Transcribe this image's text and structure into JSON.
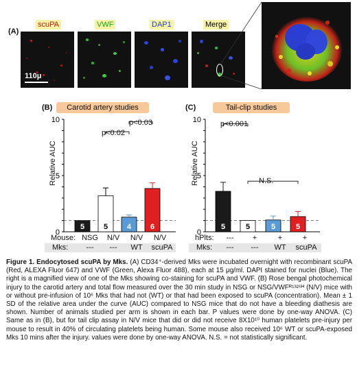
{
  "panel_a": {
    "letter": "(A)",
    "channels": [
      "scuPA",
      "VWF",
      "DAP1",
      "Merge"
    ],
    "channel_colors": [
      "#d81010",
      "#1aa31a",
      "#1f3fd0",
      "#000000"
    ],
    "scale_bar": "110μ"
  },
  "panel_b": {
    "letter": "(B)",
    "title": "Carotid artery studies",
    "ylabel": "Relative AUC",
    "pvalues": [
      "p<0.02",
      "p<0.03"
    ],
    "row1_label": "Mouse:",
    "row1": [
      "NSG",
      "N/V",
      "N/V",
      "N/V"
    ],
    "row2_label": "Mks:",
    "row2": [
      "---",
      "---",
      "WT",
      "scuPA"
    ]
  },
  "panel_c": {
    "letter": "(C)",
    "title": "Tail-clip studies",
    "ylabel": "Relative AUC",
    "pvalues": [
      "p<0.001",
      "N.S."
    ],
    "row1_label": "hPlts:",
    "row1": [
      "---",
      "+",
      "+",
      "+"
    ],
    "row2_label": "Mks:",
    "row2": [
      "---",
      "---",
      "WT",
      "scuPA"
    ]
  },
  "chart_data": [
    {
      "type": "bar",
      "title": "Carotid artery studies",
      "ylabel": "Relative AUC",
      "ylim": [
        0,
        10
      ],
      "yticks": [
        0,
        1,
        2,
        3,
        4,
        5,
        6,
        7,
        8,
        9,
        10
      ],
      "categories": [
        "NSG / ---",
        "N/V / ---",
        "N/V / WT",
        "N/V / scuPA"
      ],
      "values": [
        1.0,
        3.2,
        1.3,
        3.85
      ],
      "errors": [
        0,
        0.7,
        0.2,
        0.5
      ],
      "n": [
        "5",
        "5",
        "4",
        "6"
      ],
      "colors": [
        "#1a1a1a",
        "#ffffff",
        "#5b9bd5",
        "#e02020"
      ],
      "reference_line": 1
    },
    {
      "type": "bar",
      "title": "Tail-clip studies",
      "ylabel": "Relative AUC",
      "ylim": [
        0,
        10
      ],
      "yticks": [
        0,
        1,
        2,
        3,
        4,
        5,
        6,
        7,
        8,
        9,
        10
      ],
      "categories": [
        "--- / ---",
        "+ / ---",
        "+ / WT",
        "+ / scuPA"
      ],
      "values": [
        3.6,
        1.0,
        1.05,
        1.35
      ],
      "errors": [
        0.8,
        0,
        0.35,
        0.45
      ],
      "n": [
        "5",
        "5",
        "5",
        "5"
      ],
      "colors": [
        "#1a1a1a",
        "#ffffff",
        "#5b9bd5",
        "#e02020"
      ],
      "reference_line": 1
    }
  ],
  "caption": {
    "heading": "Figure 1. Endocytosed scuPA by Mks.",
    "body_a": " (A) CD34⁺-derived Mks were incubated overnight with recombinant scuPA (Red, ALEXA Fluor 647) and VWF (Green, Alexa Fluor 488), each at 15 μg/ml. DAPI stained for nuclei (Blue). The right is a magnified view of one of the Mks showing co-staining for scuPA and VWF.",
    "body_b": " (B) Rose bengal photochemical injury to the carotid artery and total flow measured over the 30 min study in NSG or NSG/VWFᴿ¹³²⁶ᴴ (N/V) mice with or without pre-infusion of 10⁶ Mks that had not (WT) or that had been exposed to scuPA (concentration). Mean ± 1 SD of the relative area under the curve (AUC) compared to NSG mice that do not have a bleeding diathesis are shown. Number of animals studied per arm is shown in each bar. P values were done by one-way ANOVA.",
    "body_c": " (C) Same as in (B), but for tail clip assay in N/V mice that did or did not receive 8X10¹⁰ human platelets pre-injury per mouse to result in 40% of circulating platelets being human. Some mouse also received 10⁶ WT or scuPA-exposed Mks 10 mins after the injury. values were done by one-way ANOVA. N.S. = not statistically significant."
  }
}
